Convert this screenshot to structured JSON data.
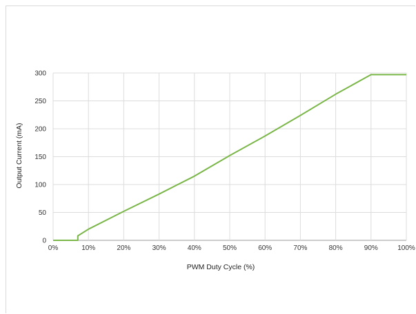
{
  "chart_data": {
    "type": "line",
    "title": "",
    "xlabel": "PWM Duty Cycle (%)",
    "ylabel": "Output Current (mA)",
    "xlim": [
      0,
      100
    ],
    "ylim": [
      0,
      300
    ],
    "x_ticks": [
      0,
      10,
      20,
      30,
      40,
      50,
      60,
      70,
      80,
      90,
      100
    ],
    "x_tick_labels": [
      "0%",
      "10%",
      "20%",
      "30%",
      "40%",
      "50%",
      "60%",
      "70%",
      "80%",
      "90%",
      "100%"
    ],
    "y_ticks": [
      0,
      50,
      100,
      150,
      200,
      250,
      300
    ],
    "y_tick_labels": [
      "0",
      "50",
      "100",
      "150",
      "200",
      "250",
      "300"
    ],
    "grid": true,
    "legend": "none",
    "series": [
      {
        "color": "#7ab648",
        "x": [
          0,
          7,
          7,
          10,
          20,
          30,
          40,
          50,
          60,
          70,
          80,
          90,
          100
        ],
        "y": [
          0,
          0,
          8,
          20,
          52,
          83,
          115,
          152,
          187,
          224,
          262,
          297,
          297
        ]
      }
    ]
  }
}
